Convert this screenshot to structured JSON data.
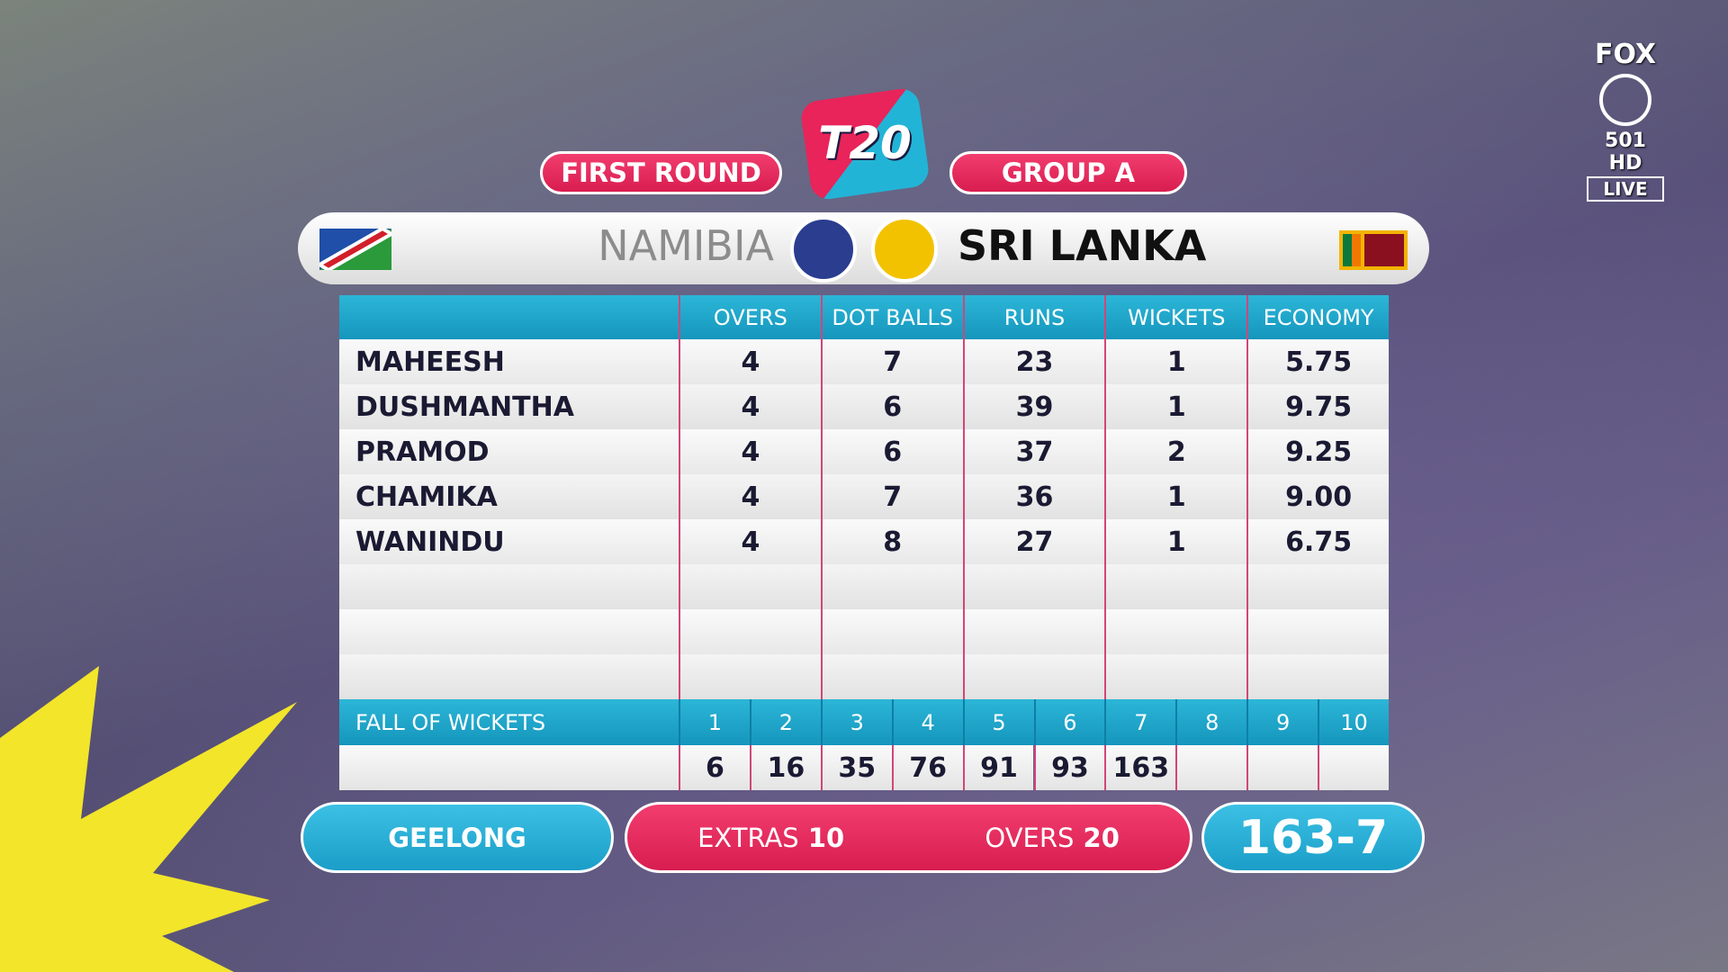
{
  "header": {
    "round": "FIRST ROUND",
    "group": "GROUP A",
    "logo": "T20"
  },
  "broadcaster": {
    "name": "FOX",
    "channel": "501 HD",
    "status": "LIVE"
  },
  "teams": {
    "home": "NAMIBIA",
    "away": "SRI LANKA"
  },
  "table": {
    "columns": [
      "OVERS",
      "DOT BALLS",
      "RUNS",
      "WICKETS",
      "ECONOMY"
    ],
    "rows": [
      [
        "MAHEESH",
        "4",
        "7",
        "23",
        "1",
        "5.75"
      ],
      [
        "DUSHMANTHA",
        "4",
        "6",
        "39",
        "1",
        "9.75"
      ],
      [
        "PRAMOD",
        "4",
        "6",
        "37",
        "2",
        "9.25"
      ],
      [
        "CHAMIKA",
        "4",
        "7",
        "36",
        "1",
        "9.00"
      ],
      [
        "WANINDU",
        "4",
        "8",
        "27",
        "1",
        "6.75"
      ]
    ]
  },
  "fall_of_wickets": {
    "label": "FALL OF WICKETS",
    "wickets": [
      "1",
      "2",
      "3",
      "4",
      "5",
      "6",
      "7",
      "8",
      "9",
      "10"
    ],
    "scores": [
      "6",
      "16",
      "35",
      "76",
      "91",
      "93",
      "163"
    ]
  },
  "footer": {
    "venue": "GEELONG",
    "extras_label": "EXTRAS",
    "extras": "10",
    "overs_label": "OVERS",
    "overs": "20",
    "score": "163-7"
  }
}
